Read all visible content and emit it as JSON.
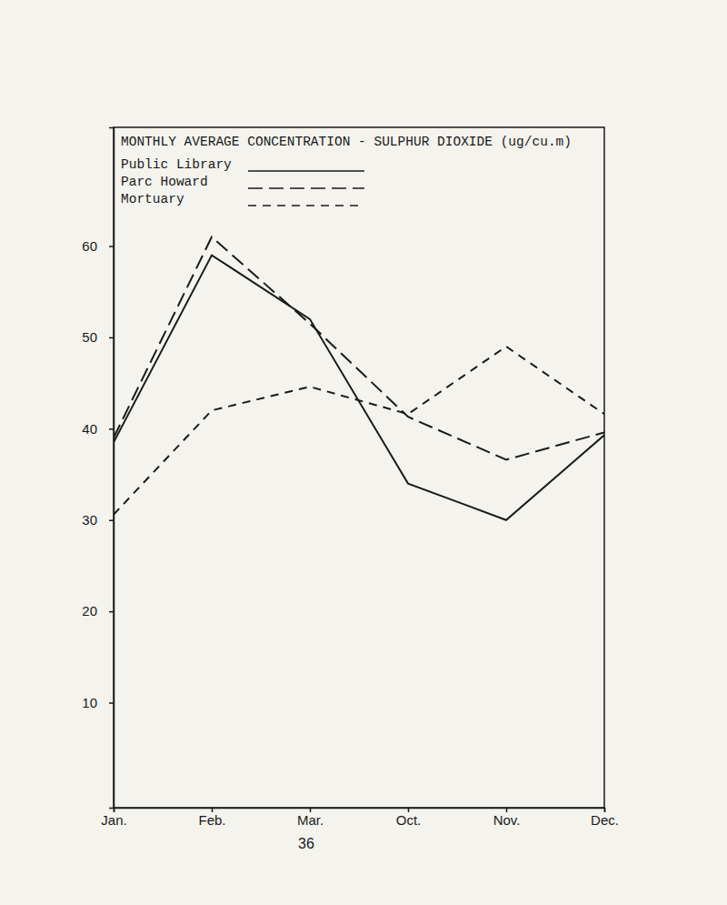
{
  "chart_data": {
    "type": "line",
    "title": "MONTHLY AVERAGE CONCENTRATION - SULPHUR DIOXIDE (ug/cu.m)",
    "categories": [
      "Jan.",
      "Feb.",
      "Mar.",
      "Oct.",
      "Nov.",
      "Dec."
    ],
    "series": [
      {
        "name": "Public Library",
        "color": "#1a1a1a",
        "line_style": "solid",
        "values": [
          38.5,
          59,
          52,
          34,
          30,
          39.3
        ]
      },
      {
        "name": "Parc Howard",
        "color": "#1a1a1a",
        "line_style": "longdash",
        "values": [
          39,
          61,
          51.5,
          41.3,
          36.6,
          39.6
        ]
      },
      {
        "name": "Mortuary",
        "color": "#1a1a1a",
        "line_style": "dashed",
        "values": [
          30.6,
          42,
          44.6,
          41.6,
          49,
          41.6
        ]
      }
    ],
    "ylim": [
      -1.5,
      73
    ],
    "yticks": [
      10,
      20,
      30,
      40,
      50,
      60
    ],
    "grid": false,
    "legend": "upper left"
  },
  "page_number": "36"
}
